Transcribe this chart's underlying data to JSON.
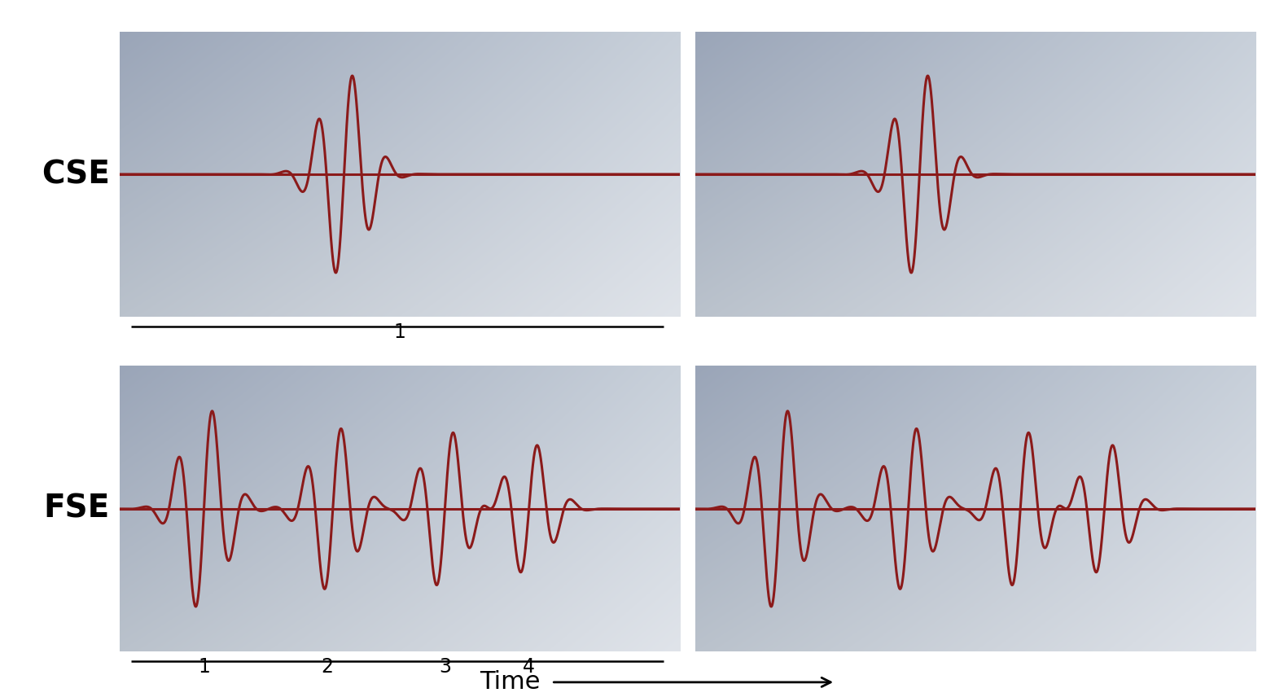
{
  "figure_bg": "#ffffff",
  "signal_color": "#8b1a1a",
  "signal_linewidth": 2.2,
  "cse_label": "CSE",
  "fse_label": "FSE",
  "time_label": "Time",
  "cse_ruler_labels": [
    "1"
  ],
  "fse_ruler_labels": [
    "1",
    "2",
    "3",
    "4"
  ],
  "label_fontsize": 28,
  "ruler_fontsize": 17,
  "time_fontsize": 22,
  "panel_color_top_left": "#9aa5b8",
  "panel_color_top_right": "#cdd2db",
  "panel_color_bottom_left": "#b8bfc8",
  "panel_color_bottom_right": "#d8dce4"
}
